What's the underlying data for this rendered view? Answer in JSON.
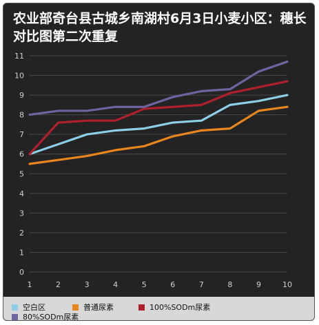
{
  "chart_data": {
    "type": "line",
    "title": "农业部奇台县古城乡南湖村6月3日小麦小区：穗长对比图第二次重复",
    "x": [
      1,
      2,
      3,
      4,
      5,
      6,
      7,
      8,
      9,
      10
    ],
    "x_ticks": [
      "1",
      "2",
      "3",
      "4",
      "5",
      "6",
      "7",
      "8",
      "9",
      "10"
    ],
    "ylim": [
      0,
      11
    ],
    "y_ticks": [
      "0",
      "1",
      "2",
      "3",
      "4",
      "5",
      "6",
      "7",
      "8",
      "9",
      "10",
      "11"
    ],
    "grid": true,
    "legend_position": "bottom",
    "series": [
      {
        "name": "空白区",
        "color": "#8ecfe8",
        "values": [
          6.0,
          6.5,
          7.0,
          7.2,
          7.3,
          7.6,
          7.7,
          8.5,
          8.7,
          9.0
        ]
      },
      {
        "name": "普通尿素",
        "color": "#e8861d",
        "values": [
          5.5,
          5.7,
          5.9,
          6.2,
          6.4,
          6.9,
          7.2,
          7.3,
          8.2,
          8.4
        ]
      },
      {
        "name": "100%SODm尿素",
        "color": "#b0202c",
        "values": [
          6.0,
          7.6,
          7.7,
          7.7,
          8.3,
          8.4,
          8.5,
          9.1,
          9.4,
          9.7
        ]
      },
      {
        "name": "80%SODm尿素",
        "color": "#6f64a0",
        "values": [
          8.0,
          8.2,
          8.2,
          8.4,
          8.4,
          8.9,
          9.2,
          9.3,
          10.2,
          10.7
        ]
      }
    ]
  }
}
